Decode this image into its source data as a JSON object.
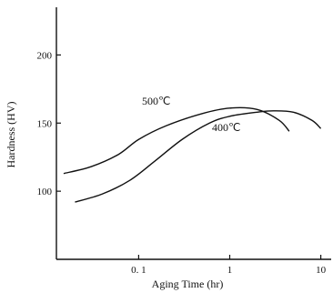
{
  "chart_data": {
    "type": "line",
    "xlabel": "Aging Time (hr)",
    "ylabel": "Hardness (HV)",
    "xscale": "log",
    "xlim": [
      0.0125,
      13
    ],
    "ylim": [
      50,
      235
    ],
    "x_ticks": [
      0.1,
      1,
      10
    ],
    "x_tick_labels": [
      "0. 1",
      "1",
      "10"
    ],
    "y_ticks": [
      100,
      150,
      200
    ],
    "y_tick_labels": [
      "100",
      "150",
      "200"
    ],
    "grid": false,
    "series": [
      {
        "name": "500℃",
        "x": [
          0.015,
          0.03,
          0.06,
          0.1,
          0.2,
          0.5,
          1.0,
          2.0,
          3.5,
          4.5
        ],
        "y": [
          113,
          118,
          127,
          138,
          148,
          157,
          161,
          160,
          152,
          144
        ]
      },
      {
        "name": "400℃",
        "x": [
          0.02,
          0.04,
          0.08,
          0.15,
          0.3,
          0.6,
          1.0,
          2.0,
          3.0,
          5.0,
          8.0,
          10.0
        ],
        "y": [
          92,
          98,
          108,
          122,
          138,
          150,
          155,
          158,
          159,
          158,
          152,
          146
        ]
      }
    ]
  }
}
